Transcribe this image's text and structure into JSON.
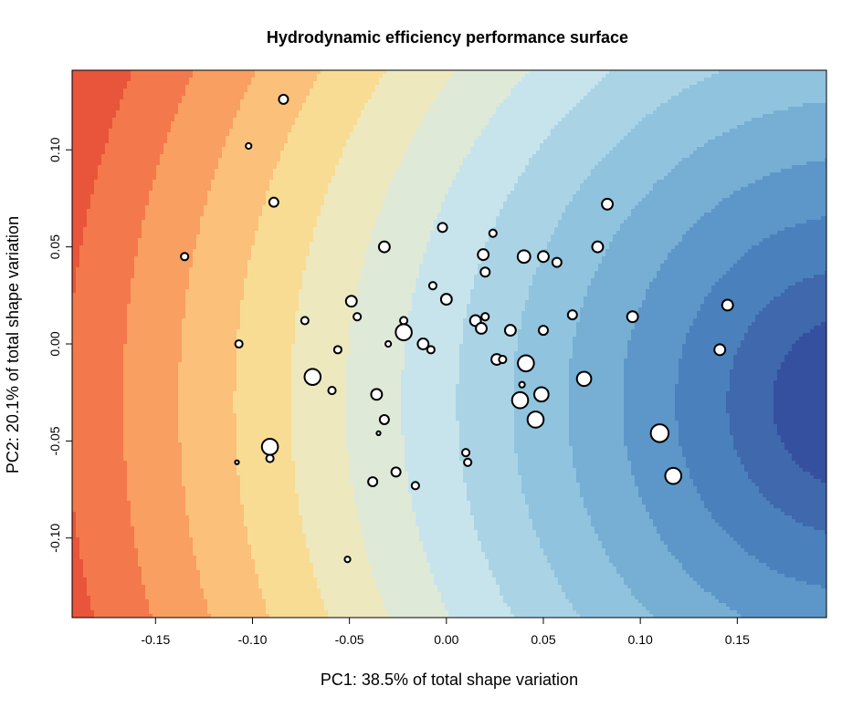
{
  "chart_data": {
    "type": "scatter",
    "title": "Hydrodynamic efficiency performance surface",
    "xlabel": "PC1: 38.5% of total shape variation",
    "ylabel": "PC2: 20.1% of total shape variation",
    "xlim": [
      -0.193,
      0.196
    ],
    "ylim": [
      -0.141,
      0.141
    ],
    "x_ticks": [
      -0.15,
      -0.1,
      -0.05,
      0.0,
      0.05,
      0.1,
      0.15
    ],
    "x_tick_labels": [
      "-0.15",
      "-0.10",
      "-0.05",
      "0.00",
      "0.05",
      "0.10",
      "0.15"
    ],
    "y_ticks": [
      -0.1,
      -0.05,
      0.0,
      0.05,
      0.1
    ],
    "y_tick_labels": [
      "-0.10",
      "-0.05",
      "0.00",
      "0.05",
      "0.10"
    ],
    "background": "filled-contour",
    "grid": false,
    "legend": "none",
    "contour_colors": [
      "#e8553a",
      "#f3794c",
      "#f89f61",
      "#fbc07a",
      "#f9dc93",
      "#eee8bf",
      "#dfe9d8",
      "#c7e4ec",
      "#aad4e5",
      "#90c3de",
      "#77aed3",
      "#5d97c9",
      "#4a81bc",
      "#3f68ad",
      "#35509f"
    ],
    "point_fill": "#ffffff",
    "point_stroke": "#000000",
    "points": [
      {
        "x": -0.084,
        "y": 0.126,
        "size": 4
      },
      {
        "x": -0.102,
        "y": 0.102,
        "size": 2
      },
      {
        "x": -0.089,
        "y": 0.073,
        "size": 4
      },
      {
        "x": -0.135,
        "y": 0.045,
        "size": 3
      },
      {
        "x": -0.032,
        "y": 0.05,
        "size": 5
      },
      {
        "x": -0.002,
        "y": 0.06,
        "size": 4
      },
      {
        "x": 0.024,
        "y": 0.057,
        "size": 3
      },
      {
        "x": 0.019,
        "y": 0.046,
        "size": 5
      },
      {
        "x": 0.04,
        "y": 0.045,
        "size": 6
      },
      {
        "x": 0.05,
        "y": 0.045,
        "size": 5
      },
      {
        "x": 0.057,
        "y": 0.042,
        "size": 4
      },
      {
        "x": 0.078,
        "y": 0.05,
        "size": 5
      },
      {
        "x": 0.083,
        "y": 0.072,
        "size": 5
      },
      {
        "x": 0.02,
        "y": 0.037,
        "size": 4
      },
      {
        "x": -0.007,
        "y": 0.03,
        "size": 3
      },
      {
        "x": 0.0,
        "y": 0.023,
        "size": 5
      },
      {
        "x": -0.049,
        "y": 0.022,
        "size": 5
      },
      {
        "x": -0.046,
        "y": 0.014,
        "size": 3
      },
      {
        "x": -0.073,
        "y": 0.012,
        "size": 3
      },
      {
        "x": -0.022,
        "y": 0.012,
        "size": 3
      },
      {
        "x": -0.022,
        "y": 0.006,
        "size": 8
      },
      {
        "x": 0.015,
        "y": 0.012,
        "size": 5
      },
      {
        "x": 0.02,
        "y": 0.014,
        "size": 3
      },
      {
        "x": 0.018,
        "y": 0.008,
        "size": 5
      },
      {
        "x": 0.033,
        "y": 0.007,
        "size": 5
      },
      {
        "x": 0.05,
        "y": 0.007,
        "size": 4
      },
      {
        "x": 0.065,
        "y": 0.015,
        "size": 4
      },
      {
        "x": 0.096,
        "y": 0.014,
        "size": 5
      },
      {
        "x": 0.145,
        "y": 0.02,
        "size": 5
      },
      {
        "x": 0.141,
        "y": -0.003,
        "size": 5
      },
      {
        "x": -0.107,
        "y": 0.0,
        "size": 3
      },
      {
        "x": -0.056,
        "y": -0.003,
        "size": 3
      },
      {
        "x": -0.03,
        "y": 0.0,
        "size": 2
      },
      {
        "x": -0.012,
        "y": 0.0,
        "size": 5
      },
      {
        "x": -0.008,
        "y": -0.003,
        "size": 3
      },
      {
        "x": 0.026,
        "y": -0.008,
        "size": 5
      },
      {
        "x": 0.029,
        "y": -0.008,
        "size": 3
      },
      {
        "x": 0.041,
        "y": -0.01,
        "size": 8
      },
      {
        "x": 0.071,
        "y": -0.018,
        "size": 7
      },
      {
        "x": -0.069,
        "y": -0.017,
        "size": 8
      },
      {
        "x": -0.059,
        "y": -0.024,
        "size": 3
      },
      {
        "x": -0.036,
        "y": -0.026,
        "size": 5
      },
      {
        "x": 0.039,
        "y": -0.021,
        "size": 2
      },
      {
        "x": 0.038,
        "y": -0.029,
        "size": 8
      },
      {
        "x": 0.049,
        "y": -0.026,
        "size": 7
      },
      {
        "x": 0.046,
        "y": -0.039,
        "size": 8
      },
      {
        "x": -0.032,
        "y": -0.039,
        "size": 4
      },
      {
        "x": -0.035,
        "y": -0.046,
        "size": 1
      },
      {
        "x": 0.11,
        "y": -0.046,
        "size": 9
      },
      {
        "x": -0.091,
        "y": -0.053,
        "size": 8
      },
      {
        "x": -0.091,
        "y": -0.059,
        "size": 3
      },
      {
        "x": -0.108,
        "y": -0.061,
        "size": 1
      },
      {
        "x": 0.01,
        "y": -0.056,
        "size": 3
      },
      {
        "x": 0.011,
        "y": -0.061,
        "size": 3
      },
      {
        "x": -0.026,
        "y": -0.066,
        "size": 4
      },
      {
        "x": -0.038,
        "y": -0.071,
        "size": 4
      },
      {
        "x": -0.016,
        "y": -0.073,
        "size": 3
      },
      {
        "x": 0.117,
        "y": -0.068,
        "size": 8
      },
      {
        "x": -0.051,
        "y": -0.111,
        "size": 2
      }
    ]
  }
}
